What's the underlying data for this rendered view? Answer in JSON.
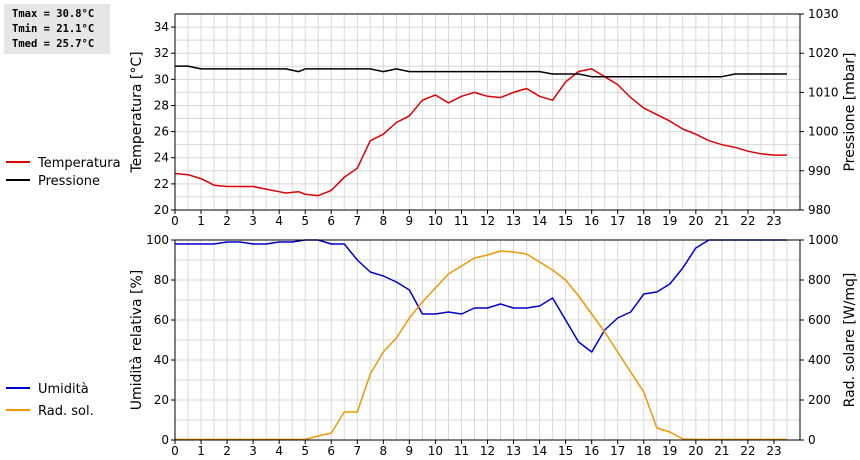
{
  "stats": {
    "tmax": "Tmax = 30.8°C",
    "tmin": "Tmin = 21.1°C",
    "tmed": "Tmed = 25.7°C"
  },
  "chart_data": [
    {
      "type": "line",
      "x_ticks": [
        0,
        1,
        2,
        3,
        4,
        5,
        6,
        7,
        8,
        9,
        10,
        11,
        12,
        13,
        14,
        15,
        16,
        17,
        18,
        19,
        20,
        21,
        22,
        23
      ],
      "xlim": [
        0,
        24
      ],
      "grid": true,
      "legend_position": "left",
      "y_left": {
        "label": "Temperatura [°C]",
        "lim": [
          20,
          35
        ],
        "ticks": [
          20,
          22,
          24,
          26,
          28,
          30,
          32,
          34
        ]
      },
      "y_right": {
        "label": "Pressione [mbar]",
        "lim": [
          980,
          1030
        ],
        "ticks": [
          980,
          990,
          1000,
          1010,
          1020,
          1030
        ]
      },
      "series": [
        {
          "name": "Temperatura",
          "axis": "left",
          "color": "#dd0000",
          "points": [
            [
              0,
              22.8
            ],
            [
              0.5,
              22.7
            ],
            [
              1,
              22.4
            ],
            [
              1.5,
              21.9
            ],
            [
              2,
              21.8
            ],
            [
              2.5,
              21.8
            ],
            [
              3,
              21.8
            ],
            [
              3.5,
              21.6
            ],
            [
              4,
              21.4
            ],
            [
              4.25,
              21.3
            ],
            [
              4.75,
              21.4
            ],
            [
              5,
              21.2
            ],
            [
              5.5,
              21.1
            ],
            [
              6,
              21.5
            ],
            [
              6.5,
              22.5
            ],
            [
              7,
              23.2
            ],
            [
              7.5,
              25.3
            ],
            [
              8,
              25.8
            ],
            [
              8.5,
              26.7
            ],
            [
              9,
              27.2
            ],
            [
              9.5,
              28.4
            ],
            [
              10,
              28.8
            ],
            [
              10.5,
              28.2
            ],
            [
              11,
              28.7
            ],
            [
              11.5,
              29.0
            ],
            [
              12,
              28.7
            ],
            [
              12.5,
              28.6
            ],
            [
              13,
              29.0
            ],
            [
              13.5,
              29.3
            ],
            [
              14,
              28.7
            ],
            [
              14.5,
              28.4
            ],
            [
              15,
              29.8
            ],
            [
              15.5,
              30.6
            ],
            [
              16,
              30.8
            ],
            [
              16.5,
              30.2
            ],
            [
              17,
              29.6
            ],
            [
              17.5,
              28.6
            ],
            [
              18,
              27.8
            ],
            [
              18.5,
              27.3
            ],
            [
              19,
              26.8
            ],
            [
              19.5,
              26.2
            ],
            [
              20,
              25.8
            ],
            [
              20.5,
              25.3
            ],
            [
              21,
              25.0
            ],
            [
              21.5,
              24.8
            ],
            [
              22,
              24.5
            ],
            [
              22.5,
              24.3
            ],
            [
              23,
              24.2
            ],
            [
              23.5,
              24.2
            ]
          ]
        },
        {
          "name": "Pressione",
          "axis": "right",
          "color": "#000000",
          "points": [
            [
              0,
              1016.7
            ],
            [
              0.5,
              1016.7
            ],
            [
              1,
              1016.0
            ],
            [
              2,
              1016.0
            ],
            [
              3,
              1016.0
            ],
            [
              4,
              1016.0
            ],
            [
              4.25,
              1016.0
            ],
            [
              4.75,
              1015.3
            ],
            [
              5,
              1016.0
            ],
            [
              6,
              1016.0
            ],
            [
              7,
              1016.0
            ],
            [
              7.5,
              1016.0
            ],
            [
              8,
              1015.3
            ],
            [
              8.5,
              1016.0
            ],
            [
              9,
              1015.3
            ],
            [
              10,
              1015.3
            ],
            [
              11,
              1015.3
            ],
            [
              12,
              1015.3
            ],
            [
              13,
              1015.3
            ],
            [
              14,
              1015.3
            ],
            [
              14.5,
              1014.7
            ],
            [
              15,
              1014.7
            ],
            [
              15.5,
              1014.7
            ],
            [
              16,
              1014.0
            ],
            [
              17,
              1014.0
            ],
            [
              18,
              1014.0
            ],
            [
              19,
              1014.0
            ],
            [
              20,
              1014.0
            ],
            [
              21,
              1014.0
            ],
            [
              21.5,
              1014.7
            ],
            [
              22,
              1014.7
            ],
            [
              23,
              1014.7
            ],
            [
              23.5,
              1014.7
            ]
          ]
        }
      ]
    },
    {
      "type": "line",
      "x_ticks": [
        0,
        1,
        2,
        3,
        4,
        5,
        6,
        7,
        8,
        9,
        10,
        11,
        12,
        13,
        14,
        15,
        16,
        17,
        18,
        19,
        20,
        21,
        22,
        23
      ],
      "xlim": [
        0,
        24
      ],
      "grid": true,
      "legend_position": "left",
      "y_left": {
        "label": "Umidità relativa [%]",
        "lim": [
          0,
          100
        ],
        "ticks": [
          0,
          20,
          40,
          60,
          80,
          100
        ]
      },
      "y_right": {
        "label": "Rad. solare [W/mq]",
        "lim": [
          0,
          1000
        ],
        "ticks": [
          0,
          200,
          400,
          600,
          800,
          1000
        ]
      },
      "series": [
        {
          "name": "Umidità",
          "axis": "left",
          "color": "#0000cc",
          "points": [
            [
              0,
              98
            ],
            [
              0.5,
              98
            ],
            [
              1,
              98
            ],
            [
              1.5,
              98
            ],
            [
              2,
              99
            ],
            [
              2.5,
              99
            ],
            [
              3,
              98
            ],
            [
              3.5,
              98
            ],
            [
              4,
              99
            ],
            [
              4.5,
              99
            ],
            [
              5,
              100
            ],
            [
              5.5,
              100
            ],
            [
              6,
              98
            ],
            [
              6.5,
              98
            ],
            [
              7,
              90
            ],
            [
              7.5,
              84
            ],
            [
              8,
              82
            ],
            [
              8.5,
              79
            ],
            [
              9,
              75
            ],
            [
              9.5,
              63
            ],
            [
              10,
              63
            ],
            [
              10.5,
              64
            ],
            [
              11,
              63
            ],
            [
              11.5,
              66
            ],
            [
              12,
              66
            ],
            [
              12.5,
              68
            ],
            [
              13,
              66
            ],
            [
              13.5,
              66
            ],
            [
              14,
              67
            ],
            [
              14.5,
              71
            ],
            [
              15,
              60
            ],
            [
              15.5,
              49
            ],
            [
              16,
              44
            ],
            [
              16.5,
              55
            ],
            [
              17,
              61
            ],
            [
              17.5,
              64
            ],
            [
              18,
              73
            ],
            [
              18.5,
              74
            ],
            [
              19,
              78
            ],
            [
              19.5,
              86
            ],
            [
              20,
              96
            ],
            [
              20.5,
              100
            ],
            [
              21,
              100
            ],
            [
              22,
              100
            ],
            [
              23,
              100
            ],
            [
              23.5,
              100
            ]
          ]
        },
        {
          "name": "Rad. sol.",
          "axis": "right",
          "color": "#ee9900",
          "points": [
            [
              0,
              3
            ],
            [
              1,
              3
            ],
            [
              2,
              3
            ],
            [
              3,
              3
            ],
            [
              4,
              3
            ],
            [
              5,
              3
            ],
            [
              5.5,
              20
            ],
            [
              6,
              35
            ],
            [
              6.5,
              140
            ],
            [
              7,
              140
            ],
            [
              7.5,
              330
            ],
            [
              8,
              440
            ],
            [
              8.5,
              510
            ],
            [
              9,
              610
            ],
            [
              9.5,
              690
            ],
            [
              10,
              760
            ],
            [
              10.5,
              830
            ],
            [
              11,
              870
            ],
            [
              11.5,
              910
            ],
            [
              12,
              925
            ],
            [
              12.5,
              945
            ],
            [
              13,
              940
            ],
            [
              13.5,
              930
            ],
            [
              14,
              890
            ],
            [
              14.5,
              850
            ],
            [
              15,
              800
            ],
            [
              15.5,
              720
            ],
            [
              16,
              630
            ],
            [
              16.5,
              540
            ],
            [
              17,
              440
            ],
            [
              17.5,
              340
            ],
            [
              18,
              240
            ],
            [
              18.5,
              60
            ],
            [
              19,
              40
            ],
            [
              19.5,
              5
            ],
            [
              20,
              3
            ],
            [
              21,
              3
            ],
            [
              22,
              3
            ],
            [
              23,
              3
            ],
            [
              23.5,
              3
            ]
          ]
        }
      ]
    }
  ]
}
